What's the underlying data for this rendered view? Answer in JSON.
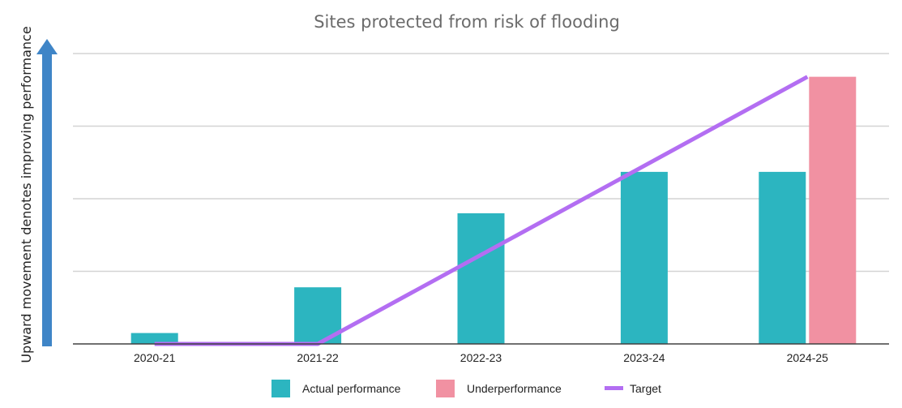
{
  "chart_data": {
    "type": "bar",
    "title": "Sites protected from risk of flooding",
    "ylabel": "Upward movement denotes improving performance",
    "xlabel": "",
    "ylim": [
      0,
      4
    ],
    "grid": true,
    "y_ticks_shown": false,
    "categories": [
      "2020-21",
      "2021-22",
      "2022-23",
      "2023-24",
      "2024-25"
    ],
    "series": [
      {
        "name": "Actual performance",
        "kind": "bar",
        "color": "#2cb5c0",
        "values": [
          0.15,
          0.78,
          1.8,
          2.37,
          2.37
        ]
      },
      {
        "name": "Underperformance",
        "kind": "bar",
        "color": "#f191a2",
        "values": [
          null,
          null,
          null,
          null,
          3.68
        ]
      },
      {
        "name": "Target",
        "kind": "line",
        "color": "#b36ef2",
        "values": [
          0,
          0,
          null,
          null,
          3.68
        ]
      }
    ],
    "legend": {
      "position": "bottom",
      "items": [
        "Actual performance",
        "Underperformance",
        "Target"
      ]
    },
    "axis_arrow_color": "#3f85c7",
    "gridline_color": "#d4d4d4",
    "baseline_color": "#404040"
  }
}
